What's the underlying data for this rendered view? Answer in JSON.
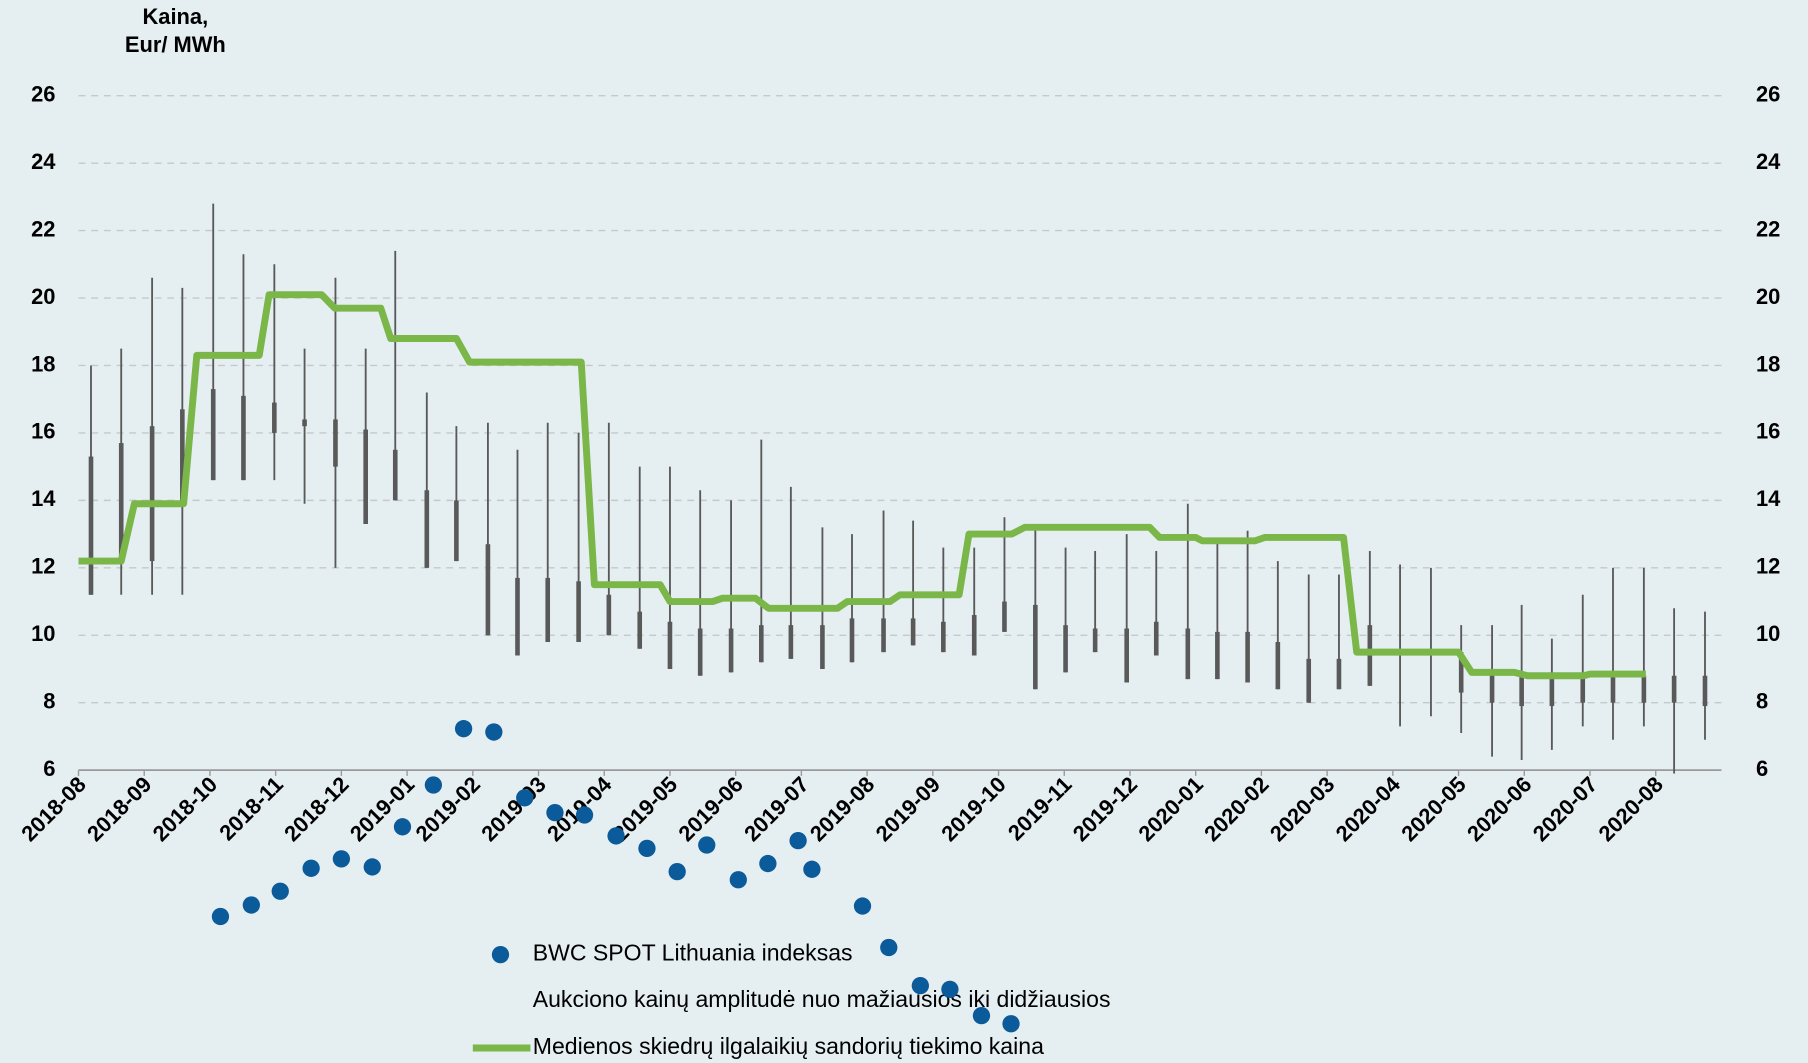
{
  "chart_data": {
    "type": "combo",
    "y_label": [
      "Kaina,",
      "Eur/ MWh"
    ],
    "xlim": [
      0,
      25
    ],
    "xticks": [
      {
        "value": 0,
        "label": "2018-08"
      },
      {
        "value": 1,
        "label": "2018-09"
      },
      {
        "value": 2,
        "label": "2018-10"
      },
      {
        "value": 3,
        "label": "2018-11"
      },
      {
        "value": 4,
        "label": "2018-12"
      },
      {
        "value": 5,
        "label": "2019-01"
      },
      {
        "value": 6,
        "label": "2019-02"
      },
      {
        "value": 7,
        "label": "2019-03"
      },
      {
        "value": 8,
        "label": "2019-04"
      },
      {
        "value": 9,
        "label": "2019-05"
      },
      {
        "value": 10,
        "label": "2019-06"
      },
      {
        "value": 11,
        "label": "2019-07"
      },
      {
        "value": 12,
        "label": "2019-08"
      },
      {
        "value": 13,
        "label": "2019-09"
      },
      {
        "value": 14,
        "label": "2019-10"
      },
      {
        "value": 15,
        "label": "2019-11"
      },
      {
        "value": 16,
        "label": "2019-12"
      },
      {
        "value": 17,
        "label": "2020-01"
      },
      {
        "value": 18,
        "label": "2020-02"
      },
      {
        "value": 19,
        "label": "2020-03"
      },
      {
        "value": 20,
        "label": "2020-04"
      },
      {
        "value": 21,
        "label": "2020-05"
      },
      {
        "value": 22,
        "label": "2020-06"
      },
      {
        "value": 23,
        "label": "2020-07"
      },
      {
        "value": 24,
        "label": "2020-08"
      }
    ],
    "ylim": [
      6,
      26
    ],
    "yticks": [
      6,
      8,
      10,
      12,
      14,
      16,
      18,
      20,
      22,
      24,
      26
    ],
    "grid": true,
    "right_axis": true,
    "series": [
      {
        "name": "BWC SPOT Lithuania indeksas",
        "type": "scatter",
        "color": "#0b5a9a",
        "x": [
          2.16,
          2.63,
          3.07,
          3.54,
          4.0,
          4.47,
          4.93,
          5.4,
          5.86,
          6.32,
          6.79,
          7.25,
          7.7,
          8.18,
          8.65,
          9.11,
          9.56,
          10.04,
          10.49,
          10.95,
          11.16,
          11.93,
          12.33,
          12.81,
          13.26,
          13.74,
          14.19
        ],
        "values": [
          1.66,
          2.0,
          2.41,
          3.09,
          3.37,
          3.13,
          4.32,
          5.56,
          7.23,
          7.13,
          5.18,
          4.74,
          4.67,
          4.05,
          3.68,
          2.99,
          3.78,
          2.75,
          3.23,
          3.91,
          3.06,
          1.97,
          0.74,
          -0.39,
          -0.5,
          -1.28,
          -1.52
        ]
      },
      {
        "name": "Aukciono kainų amplitudė nuo mažiausios iki didžiausios",
        "type": "range",
        "color": "#595959",
        "x": [
          0.19,
          0.65,
          1.12,
          1.58,
          2.05,
          2.51,
          2.98,
          3.44,
          3.91,
          4.37,
          4.82,
          5.3,
          5.75,
          6.23,
          6.68,
          7.14,
          7.61,
          8.07,
          8.54,
          9.0,
          9.46,
          9.93,
          10.39,
          10.84,
          11.32,
          11.77,
          12.25,
          12.7,
          13.16,
          13.63,
          14.09,
          14.56,
          15.02,
          15.47,
          15.95,
          16.4,
          16.88,
          17.33,
          17.79,
          18.25,
          18.72,
          19.18,
          19.65,
          20.11,
          20.58,
          21.04,
          21.51,
          21.96,
          22.42,
          22.89,
          23.35,
          23.82,
          24.28,
          24.75
        ],
        "low": [
          11.2,
          11.2,
          11.2,
          11.2,
          14.6,
          14.6,
          14.6,
          13.9,
          12.0,
          13.3,
          14.0,
          12.0,
          12.2,
          10.0,
          9.4,
          9.8,
          9.8,
          10.0,
          9.6,
          9.0,
          8.8,
          8.9,
          9.2,
          9.3,
          9.0,
          9.2,
          9.5,
          9.7,
          9.5,
          9.4,
          10.1,
          8.4,
          8.9,
          9.5,
          8.6,
          9.4,
          8.7,
          8.7,
          8.6,
          8.4,
          8.0,
          8.4,
          8.5,
          7.3,
          7.6,
          7.1,
          6.4,
          6.3,
          6.6,
          7.3,
          6.9,
          7.3,
          5.9,
          6.9
        ],
        "q1": [
          11.2,
          12.2,
          12.2,
          13.9,
          14.6,
          14.6,
          16.0,
          16.2,
          15.0,
          13.3,
          14.0,
          12.0,
          12.2,
          10.0,
          9.4,
          9.8,
          9.8,
          10.0,
          9.6,
          9.0,
          8.8,
          8.9,
          9.2,
          9.3,
          9.0,
          9.2,
          9.5,
          9.7,
          9.5,
          9.4,
          10.1,
          8.4,
          8.9,
          9.5,
          8.6,
          9.4,
          8.7,
          8.7,
          8.6,
          8.4,
          8.0,
          8.4,
          8.5,
          9.5,
          9.5,
          8.3,
          8.0,
          7.9,
          7.9,
          8.0,
          8.0,
          8.0,
          8.0,
          7.9
        ],
        "q3": [
          15.3,
          15.7,
          16.2,
          16.7,
          17.3,
          17.1,
          16.9,
          16.4,
          16.4,
          16.1,
          15.5,
          14.3,
          14.0,
          12.7,
          11.7,
          11.7,
          11.6,
          11.2,
          10.7,
          10.4,
          10.2,
          10.2,
          10.3,
          10.3,
          10.3,
          10.5,
          10.5,
          10.5,
          10.4,
          10.6,
          11.0,
          10.9,
          10.3,
          10.2,
          10.2,
          10.4,
          10.2,
          10.1,
          10.1,
          9.8,
          9.3,
          9.3,
          10.3,
          9.5,
          9.5,
          9.5,
          9.0,
          8.9,
          8.9,
          8.8,
          8.8,
          8.8,
          8.8,
          8.8
        ],
        "high": [
          18.0,
          18.5,
          20.6,
          20.3,
          22.8,
          21.3,
          21.0,
          18.5,
          20.6,
          18.5,
          21.4,
          17.2,
          16.2,
          16.3,
          15.5,
          16.3,
          16.0,
          16.3,
          15.0,
          15.0,
          14.3,
          14.0,
          15.8,
          14.4,
          13.2,
          13.0,
          13.7,
          13.4,
          12.6,
          12.6,
          13.5,
          13.3,
          12.6,
          12.5,
          13.0,
          12.5,
          13.9,
          12.9,
          13.1,
          12.2,
          11.8,
          11.8,
          12.5,
          12.1,
          12.0,
          10.3,
          10.3,
          10.9,
          9.9,
          11.2,
          12.0,
          12.0,
          10.8,
          10.7
        ]
      },
      {
        "name": "Medienos skiedrų ilgalaikių sandorių tiekimo kaina",
        "type": "line",
        "color": "#7ab648",
        "x": [
          0,
          0.65,
          0.85,
          1.6,
          1.8,
          2.75,
          2.9,
          3.7,
          3.9,
          4.6,
          4.75,
          5.75,
          5.95,
          7.65,
          7.85,
          8.85,
          9.0,
          9.65,
          9.8,
          10.3,
          10.5,
          11.55,
          11.7,
          12.35,
          12.5,
          13.4,
          13.55,
          14.2,
          14.4,
          16.3,
          16.45,
          17.0,
          17.1,
          17.9,
          18.05,
          19.25,
          19.45,
          21.0,
          21.2,
          21.85,
          22.05,
          22.9,
          23.0,
          23.85
        ],
        "values": [
          12.2,
          12.2,
          13.9,
          13.9,
          18.3,
          18.3,
          20.1,
          20.1,
          19.7,
          19.7,
          18.8,
          18.8,
          18.1,
          18.1,
          11.5,
          11.5,
          11.0,
          11.0,
          11.1,
          11.1,
          10.8,
          10.8,
          11.0,
          11.0,
          11.2,
          11.2,
          13.0,
          13.0,
          13.2,
          13.2,
          12.9,
          12.9,
          12.8,
          12.8,
          12.9,
          12.9,
          9.5,
          9.5,
          8.9,
          8.9,
          8.8,
          8.8,
          8.85,
          8.85
        ]
      }
    ]
  }
}
